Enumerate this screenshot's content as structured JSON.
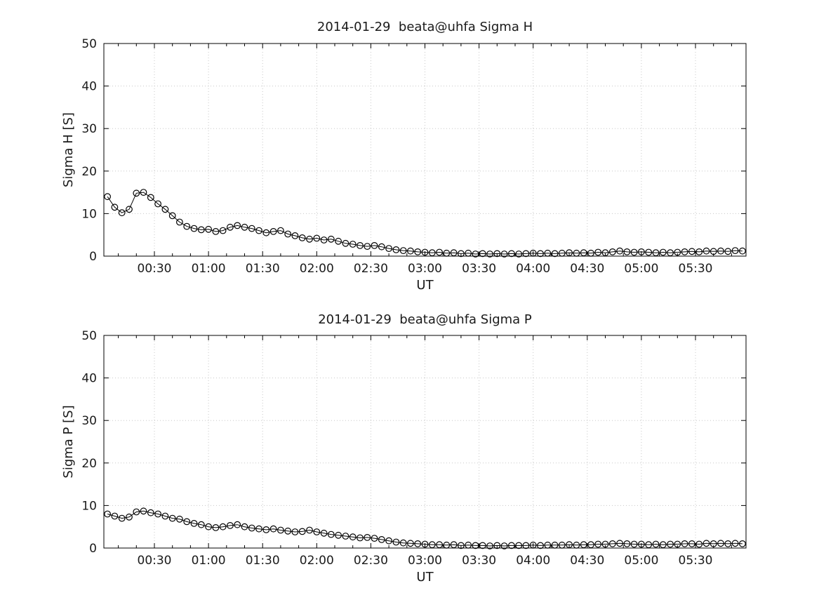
{
  "window": {
    "background": "#ffffff"
  },
  "chart_data": [
    {
      "type": "line",
      "title": "2014-01-29  beata@uhfa Sigma H",
      "xlabel": "UT",
      "ylabel": "Sigma H [S]",
      "ylim": [
        0,
        50
      ],
      "y_ticks": [
        0,
        10,
        20,
        30,
        40,
        50
      ],
      "xlim_minutes": [
        2,
        358
      ],
      "x_tick_minutes": [
        30,
        60,
        90,
        120,
        150,
        180,
        210,
        240,
        270,
        300,
        330
      ],
      "x_tick_labels": [
        "00:30",
        "01:00",
        "01:30",
        "02:00",
        "02:30",
        "03:00",
        "03:30",
        "04:00",
        "04:30",
        "05:00",
        "05:30"
      ],
      "x_minor_tick_step_minutes": 10,
      "marker": "open-circle",
      "line_color": "#000000",
      "grid": true,
      "legend": "none",
      "x_start_minutes": 4,
      "x_step_minutes": 4,
      "values": [
        14.0,
        11.5,
        10.2,
        11.0,
        14.8,
        15.0,
        13.8,
        12.3,
        11.0,
        9.5,
        8.0,
        7.0,
        6.5,
        6.2,
        6.3,
        5.8,
        6.0,
        6.8,
        7.2,
        6.8,
        6.5,
        6.0,
        5.5,
        5.8,
        6.0,
        5.2,
        4.8,
        4.3,
        4.0,
        4.2,
        3.8,
        4.0,
        3.5,
        3.0,
        2.8,
        2.5,
        2.3,
        2.5,
        2.2,
        1.8,
        1.5,
        1.3,
        1.2,
        1.0,
        0.9,
        0.8,
        0.9,
        0.7,
        0.8,
        0.6,
        0.7,
        0.5,
        0.6,
        0.5,
        0.6,
        0.5,
        0.6,
        0.5,
        0.6,
        0.7,
        0.6,
        0.7,
        0.6,
        0.7,
        0.8,
        0.7,
        0.8,
        0.7,
        0.9,
        0.8,
        1.0,
        1.2,
        1.0,
        0.9,
        1.0,
        0.9,
        0.8,
        0.9,
        0.8,
        0.9,
        1.0,
        1.1,
        1.0,
        1.2,
        1.1,
        1.2,
        1.1,
        1.3,
        1.2
      ]
    },
    {
      "type": "line",
      "title": "2014-01-29  beata@uhfa Sigma P",
      "xlabel": "UT",
      "ylabel": "Sigma P [S]",
      "ylim": [
        0,
        50
      ],
      "y_ticks": [
        0,
        10,
        20,
        30,
        40,
        50
      ],
      "xlim_minutes": [
        2,
        358
      ],
      "x_tick_minutes": [
        30,
        60,
        90,
        120,
        150,
        180,
        210,
        240,
        270,
        300,
        330
      ],
      "x_tick_labels": [
        "00:30",
        "01:00",
        "01:30",
        "02:00",
        "02:30",
        "03:00",
        "03:30",
        "04:00",
        "04:30",
        "05:00",
        "05:30"
      ],
      "x_minor_tick_step_minutes": 10,
      "marker": "open-circle",
      "line_color": "#000000",
      "grid": true,
      "legend": "none",
      "x_start_minutes": 4,
      "x_step_minutes": 4,
      "values": [
        8.0,
        7.5,
        7.0,
        7.3,
        8.5,
        8.7,
        8.3,
        8.0,
        7.5,
        7.0,
        6.8,
        6.2,
        5.8,
        5.5,
        5.0,
        4.8,
        5.0,
        5.3,
        5.5,
        5.0,
        4.7,
        4.5,
        4.3,
        4.5,
        4.2,
        4.0,
        3.8,
        3.9,
        4.2,
        3.8,
        3.5,
        3.2,
        3.0,
        2.8,
        2.6,
        2.4,
        2.5,
        2.3,
        2.0,
        1.7,
        1.4,
        1.2,
        1.1,
        1.0,
        0.9,
        0.8,
        0.8,
        0.7,
        0.8,
        0.6,
        0.7,
        0.6,
        0.6,
        0.5,
        0.6,
        0.5,
        0.6,
        0.6,
        0.6,
        0.7,
        0.6,
        0.7,
        0.7,
        0.7,
        0.8,
        0.7,
        0.8,
        0.8,
        0.9,
        0.9,
        1.0,
        1.1,
        1.0,
        0.9,
        0.9,
        0.8,
        0.9,
        0.8,
        0.9,
        0.9,
        1.0,
        1.0,
        0.9,
        1.1,
        1.0,
        1.1,
        1.0,
        1.1,
        1.0
      ]
    }
  ]
}
